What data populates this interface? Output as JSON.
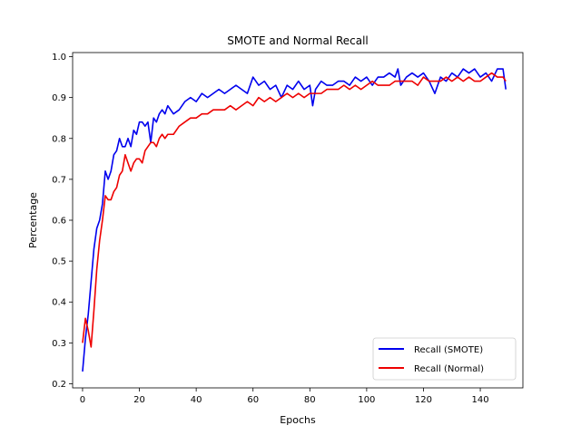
{
  "chart_data": {
    "type": "line",
    "title": "SMOTE and Normal Recall",
    "xlabel": "Epochs",
    "ylabel": "Percentage",
    "xlim": [
      -3.5,
      155
    ],
    "ylim": [
      0.19,
      1.01
    ],
    "xticks": [
      0,
      20,
      40,
      60,
      80,
      100,
      120,
      140
    ],
    "yticks": [
      0.2,
      0.3,
      0.4,
      0.5,
      0.6,
      0.7,
      0.8,
      0.9,
      1.0
    ],
    "ytick_labels": [
      "0.2",
      "0.3",
      "0.4",
      "0.5",
      "0.6",
      "0.7",
      "0.8",
      "0.9",
      "1.0"
    ],
    "grid": false,
    "legend_position": "lower-right",
    "series": [
      {
        "name": "Recall (SMOTE)",
        "color": "#0000ee",
        "x": [
          0,
          1,
          2,
          3,
          4,
          5,
          6,
          7,
          8,
          9,
          10,
          11,
          12,
          13,
          14,
          15,
          16,
          17,
          18,
          19,
          20,
          21,
          22,
          23,
          24,
          25,
          26,
          27,
          28,
          29,
          30,
          32,
          34,
          36,
          38,
          40,
          42,
          44,
          46,
          48,
          50,
          52,
          54,
          56,
          58,
          60,
          62,
          64,
          66,
          68,
          70,
          72,
          74,
          76,
          78,
          80,
          81,
          82,
          84,
          86,
          88,
          90,
          92,
          94,
          96,
          98,
          100,
          102,
          104,
          106,
          108,
          110,
          111,
          112,
          114,
          116,
          118,
          120,
          122,
          124,
          126,
          128,
          130,
          132,
          134,
          136,
          138,
          140,
          142,
          144,
          146,
          148,
          149
        ],
        "values": [
          0.23,
          0.31,
          0.37,
          0.45,
          0.53,
          0.58,
          0.6,
          0.64,
          0.72,
          0.7,
          0.72,
          0.76,
          0.77,
          0.8,
          0.78,
          0.78,
          0.8,
          0.78,
          0.82,
          0.81,
          0.84,
          0.84,
          0.83,
          0.84,
          0.79,
          0.85,
          0.84,
          0.86,
          0.87,
          0.86,
          0.88,
          0.86,
          0.87,
          0.89,
          0.9,
          0.89,
          0.91,
          0.9,
          0.91,
          0.92,
          0.91,
          0.92,
          0.93,
          0.92,
          0.91,
          0.95,
          0.93,
          0.94,
          0.92,
          0.93,
          0.9,
          0.93,
          0.92,
          0.94,
          0.92,
          0.93,
          0.88,
          0.92,
          0.94,
          0.93,
          0.93,
          0.94,
          0.94,
          0.93,
          0.95,
          0.94,
          0.95,
          0.93,
          0.95,
          0.95,
          0.96,
          0.95,
          0.97,
          0.93,
          0.95,
          0.96,
          0.95,
          0.96,
          0.94,
          0.91,
          0.95,
          0.94,
          0.96,
          0.95,
          0.97,
          0.96,
          0.97,
          0.95,
          0.96,
          0.94,
          0.97,
          0.97,
          0.92
        ]
      },
      {
        "name": "Recall (Normal)",
        "color": "#ee0000",
        "x": [
          0,
          1,
          2,
          3,
          4,
          5,
          6,
          7,
          8,
          9,
          10,
          11,
          12,
          13,
          14,
          15,
          16,
          17,
          18,
          19,
          20,
          21,
          22,
          23,
          24,
          25,
          26,
          27,
          28,
          29,
          30,
          32,
          34,
          36,
          38,
          40,
          42,
          44,
          46,
          48,
          50,
          52,
          54,
          56,
          58,
          60,
          62,
          64,
          66,
          68,
          70,
          72,
          74,
          76,
          78,
          80,
          82,
          84,
          86,
          88,
          90,
          92,
          94,
          96,
          98,
          100,
          102,
          104,
          106,
          108,
          110,
          112,
          114,
          116,
          118,
          120,
          122,
          124,
          126,
          128,
          130,
          132,
          134,
          136,
          138,
          140,
          142,
          144,
          146,
          148,
          149
        ],
        "values": [
          0.3,
          0.36,
          0.33,
          0.29,
          0.38,
          0.48,
          0.55,
          0.6,
          0.66,
          0.65,
          0.65,
          0.67,
          0.68,
          0.71,
          0.72,
          0.76,
          0.74,
          0.72,
          0.74,
          0.75,
          0.75,
          0.74,
          0.77,
          0.78,
          0.79,
          0.79,
          0.78,
          0.8,
          0.81,
          0.8,
          0.81,
          0.81,
          0.83,
          0.84,
          0.85,
          0.85,
          0.86,
          0.86,
          0.87,
          0.87,
          0.87,
          0.88,
          0.87,
          0.88,
          0.89,
          0.88,
          0.9,
          0.89,
          0.9,
          0.89,
          0.9,
          0.91,
          0.9,
          0.91,
          0.9,
          0.91,
          0.91,
          0.91,
          0.92,
          0.92,
          0.92,
          0.93,
          0.92,
          0.93,
          0.92,
          0.93,
          0.94,
          0.93,
          0.93,
          0.93,
          0.94,
          0.94,
          0.94,
          0.94,
          0.93,
          0.95,
          0.94,
          0.94,
          0.94,
          0.95,
          0.94,
          0.95,
          0.94,
          0.95,
          0.94,
          0.94,
          0.95,
          0.96,
          0.95,
          0.95,
          0.94
        ]
      }
    ]
  }
}
